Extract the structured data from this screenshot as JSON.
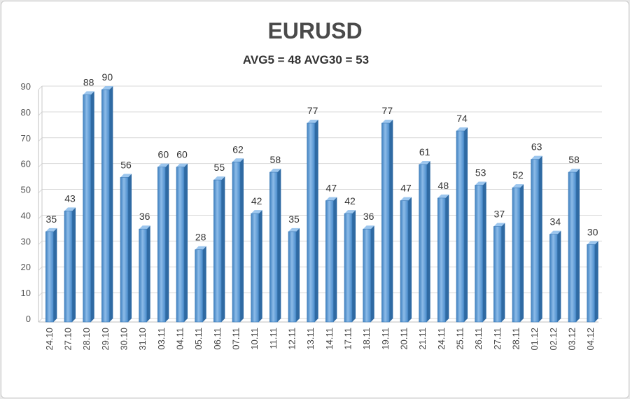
{
  "title": "EURUSD",
  "subtitle": "AVG5 = 48 AVG30 = 53",
  "chart_data": {
    "type": "bar",
    "title": "EURUSD",
    "subtitle": "AVG5 = 48 AVG30 = 53",
    "categories": [
      "24.10",
      "27.10",
      "28.10",
      "29.10",
      "30.10",
      "31.10",
      "03.11",
      "04.11",
      "05.11",
      "06.11",
      "07.11",
      "10.11",
      "11.11",
      "12.11",
      "13.11",
      "14.11",
      "17.11",
      "18.11",
      "19.11",
      "20.11",
      "21.11",
      "24.11",
      "25.11",
      "26.11",
      "27.11",
      "28.11",
      "01.12",
      "02.12",
      "03.12",
      "04.12"
    ],
    "values": [
      35,
      43,
      88,
      90,
      56,
      36,
      60,
      60,
      28,
      55,
      62,
      42,
      58,
      35,
      77,
      47,
      42,
      36,
      77,
      47,
      61,
      48,
      74,
      53,
      37,
      52,
      63,
      34,
      58,
      30
    ],
    "ylim": [
      0,
      90
    ],
    "yticks": [
      0,
      10,
      20,
      30,
      40,
      50,
      60,
      70,
      80,
      90
    ],
    "grid": true,
    "bar_color": "#5b9bd5",
    "xlabel": "",
    "ylabel": ""
  }
}
